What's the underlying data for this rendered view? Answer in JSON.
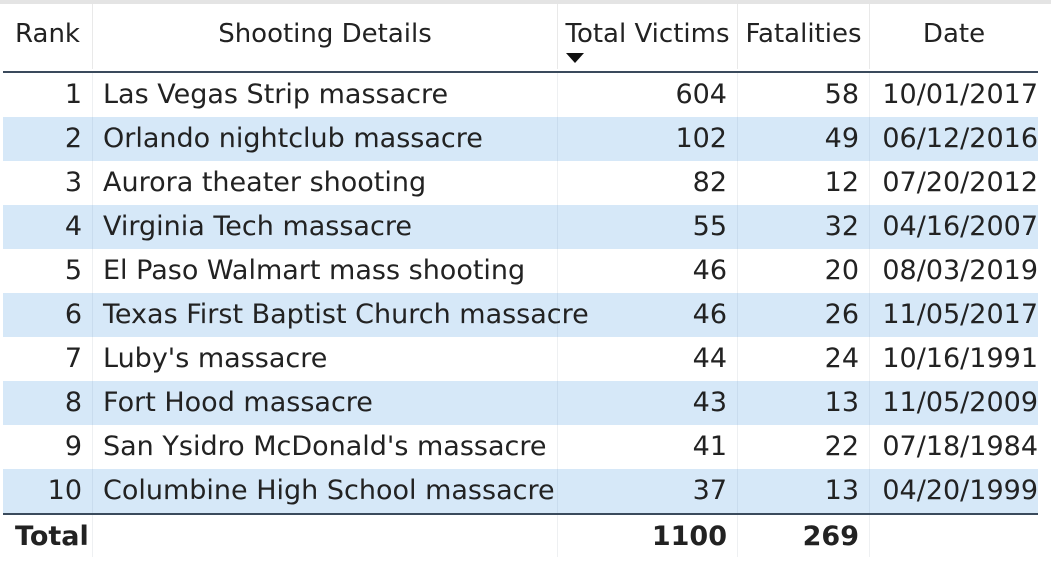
{
  "table": {
    "columns": {
      "rank": "Rank",
      "details": "Shooting Details",
      "victims": "Total Victims",
      "fatalities": "Fatalities",
      "date": "Date"
    },
    "sort": {
      "column": "victims",
      "direction": "descending"
    },
    "rows": [
      {
        "rank": "1",
        "details": "Las Vegas Strip massacre",
        "victims": "604",
        "fatalities": "58",
        "date": "10/01/2017"
      },
      {
        "rank": "2",
        "details": "Orlando nightclub massacre",
        "victims": "102",
        "fatalities": "49",
        "date": "06/12/2016"
      },
      {
        "rank": "3",
        "details": "Aurora theater shooting",
        "victims": "82",
        "fatalities": "12",
        "date": "07/20/2012"
      },
      {
        "rank": "4",
        "details": "Virginia Tech massacre",
        "victims": "55",
        "fatalities": "32",
        "date": "04/16/2007"
      },
      {
        "rank": "5",
        "details": "El Paso Walmart mass shooting",
        "victims": "46",
        "fatalities": "20",
        "date": "08/03/2019"
      },
      {
        "rank": "6",
        "details": "Texas First Baptist Church massacre",
        "victims": "46",
        "fatalities": "26",
        "date": "11/05/2017"
      },
      {
        "rank": "7",
        "details": "Luby's massacre",
        "victims": "44",
        "fatalities": "24",
        "date": "10/16/1991"
      },
      {
        "rank": "8",
        "details": "Fort Hood massacre",
        "victims": "43",
        "fatalities": "13",
        "date": "11/05/2009"
      },
      {
        "rank": "9",
        "details": "San Ysidro McDonald's massacre",
        "victims": "41",
        "fatalities": "22",
        "date": "07/18/1984"
      },
      {
        "rank": "10",
        "details": "Columbine High School massacre",
        "victims": "37",
        "fatalities": "13",
        "date": "04/20/1999"
      }
    ],
    "total": {
      "label": "Total",
      "victims": "1100",
      "fatalities": "269"
    },
    "colors": {
      "stripe": "#d6e8f8",
      "rule": "#3a4a5c",
      "text": "#222222"
    }
  }
}
